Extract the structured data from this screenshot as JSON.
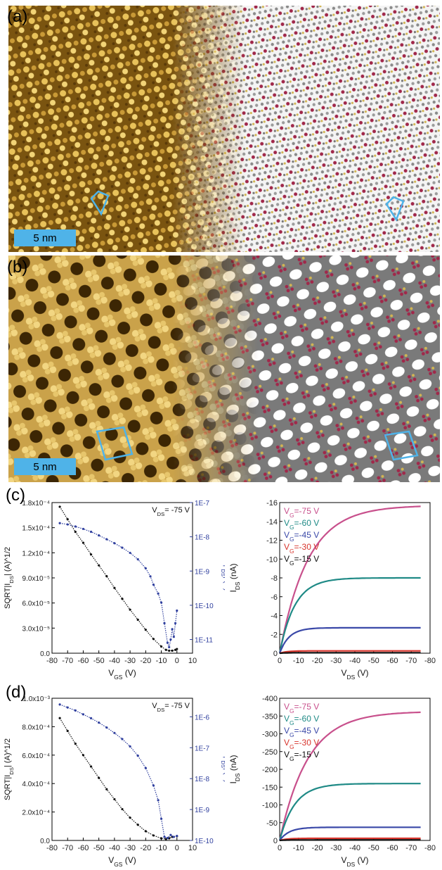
{
  "panels": {
    "a": {
      "label": "(a)",
      "scale_bar": "5 nm"
    },
    "b": {
      "label": "(b)",
      "scale_bar": "5 nm"
    },
    "c": {
      "label": "(c)"
    },
    "d": {
      "label": "(d)"
    }
  },
  "chart_data": [
    {
      "id": "c-transfer",
      "type": "scatter",
      "annotation": "V_DS= -75 V",
      "xlabel": "V_GS (V)",
      "ylabel_left": "SQRT|I_DS| (A)^1/2",
      "ylabel_right": "|I_DS| (A)",
      "xlim": [
        -80,
        10
      ],
      "x_reversed": false,
      "xticks": [
        "-80",
        "-70",
        "-60",
        "-50",
        "-40",
        "-30",
        "-20",
        "-10",
        "0",
        "10"
      ],
      "ylim_left": [
        0,
        0.00018
      ],
      "yticks_left": [
        "0.0",
        "3.0x10⁻⁵",
        "6.0x10⁻⁵",
        "9.0x10⁻⁵",
        "1.2x10⁻⁴",
        "1.5x10⁻⁴",
        "1.8x10⁻⁴"
      ],
      "yticks_right": [
        "1E-11",
        "1E-10",
        "1E-9",
        "1E-8",
        "1E-7"
      ],
      "right_log_range": [
        -11.4,
        -7
      ],
      "series": [
        {
          "axis": "left",
          "color": "#111111",
          "x": [
            -75,
            -70,
            -65,
            -60,
            -55,
            -50,
            -45,
            -40,
            -35,
            -30,
            -25,
            -20,
            -15,
            -10,
            -7,
            -5,
            -3,
            -1,
            0
          ],
          "y": [
            0.000175,
            0.00016,
            0.000145,
            0.000132,
            0.000118,
            0.000105,
            9.2e-05,
            7.8e-05,
            6.5e-05,
            5.2e-05,
            4e-05,
            2.8e-05,
            1.7e-05,
            8e-06,
            4e-06,
            3e-06,
            3e-06,
            4e-06,
            5e-06
          ]
        },
        {
          "axis": "right",
          "color": "#2f3f9e",
          "x": [
            -75,
            -70,
            -65,
            -60,
            -55,
            -50,
            -45,
            -40,
            -35,
            -30,
            -25,
            -20,
            -17,
            -15,
            -12,
            -10,
            -8,
            -6,
            -5,
            -4,
            -3,
            -2,
            -1,
            0
          ],
          "y": [
            2.5e-08,
            2.3e-08,
            2e-08,
            1.7e-08,
            1.4e-08,
            1.1e-08,
            8.5e-09,
            6.5e-09,
            4.8e-09,
            3.4e-09,
            2.2e-09,
            1.2e-09,
            7e-10,
            4e-10,
            2.2e-10,
            1.2e-10,
            3e-11,
            8e-12,
            6e-12,
            1e-11,
            2e-11,
            1.2e-11,
            3e-11,
            7e-11
          ]
        }
      ]
    },
    {
      "id": "c-output",
      "type": "line",
      "xlabel": "V_DS (V)",
      "ylabel": "I_DS (nA)",
      "xlim": [
        0,
        -80
      ],
      "xticks": [
        "0",
        "-10",
        "-20",
        "-30",
        "-40",
        "-50",
        "-60",
        "-70",
        "-80"
      ],
      "ylim": [
        0,
        -16
      ],
      "yticks": [
        "0",
        "-2",
        "-4",
        "-6",
        "-8",
        "-10",
        "-12",
        "-14",
        "-16"
      ],
      "legend": [
        {
          "label": "V_G=-75 V",
          "color": "#c8508c"
        },
        {
          "label": "V_G=-60 V",
          "color": "#1f8a86"
        },
        {
          "label": "V_G=-45 V",
          "color": "#3a48a8"
        },
        {
          "label": "V_G=-30 V",
          "color": "#d8342c"
        },
        {
          "label": "V_G=-15 V",
          "color": "#111111"
        }
      ],
      "series": [
        {
          "color": "#c8508c",
          "sat": -15.7,
          "tau": 15
        },
        {
          "color": "#1f8a86",
          "sat": -8.0,
          "tau": 8
        },
        {
          "color": "#3a48a8",
          "sat": -2.7,
          "tau": 5
        },
        {
          "color": "#d8342c",
          "sat": -0.25,
          "tau": 4
        },
        {
          "color": "#111111",
          "sat": -0.05,
          "tau": 4
        }
      ]
    },
    {
      "id": "d-transfer",
      "type": "scatter",
      "annotation": "V_DS= -75 V",
      "xlabel": "V_GS (V)",
      "ylabel_left": "SQRT|I_DS| (A)^1/2",
      "ylabel_right": "|I_DS| (A)",
      "xlim": [
        -80,
        10
      ],
      "xticks": [
        "-80",
        "-70",
        "-60",
        "-50",
        "-40",
        "-30",
        "-20",
        "-10",
        "0",
        "10"
      ],
      "ylim_left": [
        0,
        0.001
      ],
      "yticks_left": [
        "0.0",
        "2.0x10⁻⁴",
        "4.0x10⁻⁴",
        "6.0x10⁻⁴",
        "8.0x10⁻⁴",
        "1.0x10⁻³"
      ],
      "yticks_right": [
        "1E-10",
        "1E-9",
        "1E-8",
        "1E-7",
        "1E-6"
      ],
      "right_log_range": [
        -10,
        -5.4
      ],
      "series": [
        {
          "axis": "left",
          "color": "#111111",
          "x": [
            -75,
            -70,
            -65,
            -60,
            -55,
            -50,
            -45,
            -40,
            -35,
            -30,
            -25,
            -20,
            -15,
            -10,
            -7,
            -5,
            -3,
            0
          ],
          "y": [
            0.00086,
            0.00077,
            0.00068,
            0.0006,
            0.00052,
            0.00044,
            0.00036,
            0.00029,
            0.00022,
            0.00016,
            0.00011,
            6.5e-05,
            3.5e-05,
            1.5e-05,
            1e-05,
            1.5e-05,
            2.5e-05,
            3e-05
          ]
        },
        {
          "axis": "right",
          "color": "#2f3f9e",
          "x": [
            -75,
            -70,
            -65,
            -60,
            -55,
            -50,
            -45,
            -40,
            -35,
            -30,
            -25,
            -20,
            -15,
            -12,
            -10,
            -8,
            -6,
            -4,
            -2,
            0
          ],
          "y": [
            2.5e-06,
            2e-06,
            1.6e-06,
            1.2e-06,
            9e-07,
            6.5e-07,
            4.5e-07,
            3e-07,
            1.9e-07,
            1.1e-07,
            5.5e-08,
            2.2e-08,
            6e-09,
            2e-09,
            5e-10,
            1.3e-10,
            1.2e-10,
            1.5e-10,
            1.3e-10,
            1.4e-10
          ]
        }
      ]
    },
    {
      "id": "d-output",
      "type": "line",
      "xlabel": "V_DS (V)",
      "ylabel": "I_DS (nA)",
      "xlim": [
        0,
        -80
      ],
      "xticks": [
        "0",
        "-10",
        "-20",
        "-30",
        "-40",
        "-50",
        "-60",
        "-70",
        "-80"
      ],
      "ylim": [
        0,
        -400
      ],
      "yticks": [
        "0",
        "-50",
        "-100",
        "-150",
        "-200",
        "-250",
        "-300",
        "-350",
        "-400"
      ],
      "legend": [
        {
          "label": "V_G=-75 V",
          "color": "#c8508c"
        },
        {
          "label": "V_G=-60 V",
          "color": "#1f8a86"
        },
        {
          "label": "V_G=-45 V",
          "color": "#3a48a8"
        },
        {
          "label": "V_G=-30 V",
          "color": "#d8342c"
        },
        {
          "label": "V_G=-15 V",
          "color": "#111111"
        }
      ],
      "series": [
        {
          "color": "#c8508c",
          "sat": -363,
          "tau": 15
        },
        {
          "color": "#1f8a86",
          "sat": -160,
          "tau": 8
        },
        {
          "color": "#3a48a8",
          "sat": -37,
          "tau": 5
        },
        {
          "color": "#d8342c",
          "sat": -6,
          "tau": 4
        },
        {
          "color": "#111111",
          "sat": -1.5,
          "tau": 4
        }
      ]
    }
  ]
}
